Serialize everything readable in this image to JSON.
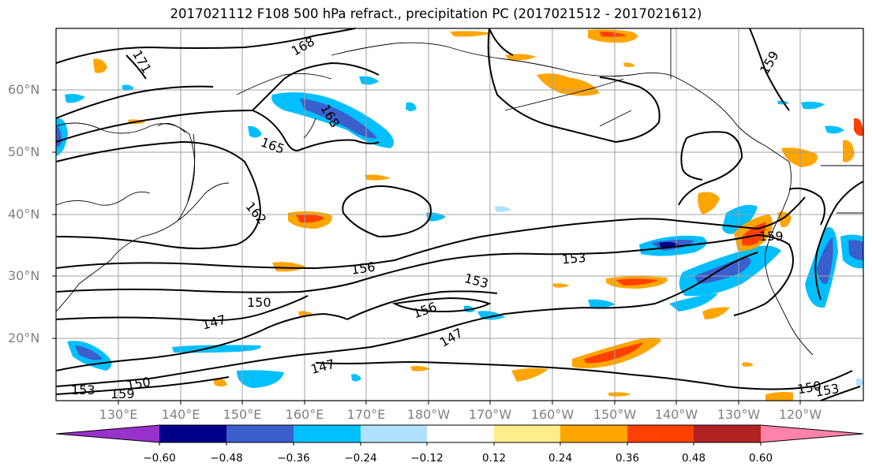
{
  "title": "2017021112 F108 500 hPa refract., precipitation PC (2017021512 - 2017021612)",
  "lat_labels": [
    "60°N",
    "50°N",
    "40°N",
    "30°N",
    "20°N"
  ],
  "lon_labels": [
    "130°E",
    "140°E",
    "150°E",
    "160°E",
    "170°E",
    "180°W",
    "170°W",
    "160°W",
    "150°W",
    "140°W",
    "130°W",
    "120°W"
  ],
  "contour_labels": [
    "168",
    "171",
    "168",
    "165",
    "162",
    "159",
    "159",
    "156",
    "153",
    "153",
    "150",
    "147",
    "156",
    "147",
    "147",
    "153",
    "150",
    "153",
    "150",
    "159"
  ],
  "colorbar": {
    "ticks": [
      "−0.60",
      "−0.48",
      "−0.36",
      "−0.24",
      "−0.12",
      "0.12",
      "0.24",
      "0.36",
      "0.48",
      "0.60"
    ],
    "colors": [
      "#9932cc",
      "#00008b",
      "#3a5fcd",
      "#00bfff",
      "#b0e2ff",
      "#ffffff",
      "#ffec8b",
      "#ffa500",
      "#ff4000",
      "#b22222",
      "#ff82ab"
    ]
  }
}
